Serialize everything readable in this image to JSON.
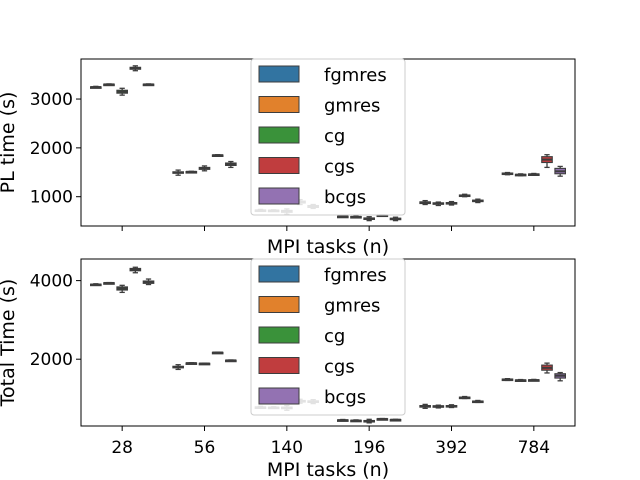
{
  "chart_data": [
    {
      "type": "box",
      "xlabel": "MPI tasks (n)",
      "ylabel": "PL time (s)",
      "categories": [
        "28",
        "56",
        "140",
        "196",
        "392",
        "784"
      ],
      "show_x_ticklabels": false,
      "y_ticks": [
        1000,
        2000,
        3000
      ],
      "ylim": [
        400,
        3820
      ],
      "legend": "top-center",
      "series": [
        {
          "name": "fgmres",
          "color": "#3274a1",
          "boxes": [
            {
              "min": 3230,
              "q1": 3240,
              "median": 3245,
              "q3": 3250,
              "max": 3260
            },
            {
              "min": 1440,
              "q1": 1480,
              "median": 1495,
              "q3": 1510,
              "max": 1545
            },
            {
              "min": 700,
              "q1": 712,
              "median": 720,
              "q3": 728,
              "max": 740
            },
            {
              "min": 580,
              "q1": 590,
              "median": 595,
              "q3": 600,
              "max": 610
            },
            {
              "min": 840,
              "q1": 860,
              "median": 880,
              "q3": 895,
              "max": 920
            },
            {
              "min": 1450,
              "q1": 1465,
              "median": 1475,
              "q3": 1485,
              "max": 1495
            }
          ]
        },
        {
          "name": "gmres",
          "color": "#e1812c",
          "boxes": [
            {
              "min": 3290,
              "q1": 3295,
              "median": 3300,
              "q3": 3305,
              "max": 3310
            },
            {
              "min": 1500,
              "q1": 1505,
              "median": 1510,
              "q3": 1515,
              "max": 1520
            },
            {
              "min": 705,
              "q1": 712,
              "median": 718,
              "q3": 724,
              "max": 732
            },
            {
              "min": 570,
              "q1": 580,
              "median": 587,
              "q3": 594,
              "max": 604
            },
            {
              "min": 820,
              "q1": 845,
              "median": 860,
              "q3": 875,
              "max": 890
            },
            {
              "min": 1430,
              "q1": 1440,
              "median": 1450,
              "q3": 1458,
              "max": 1468
            }
          ]
        },
        {
          "name": "cg",
          "color": "#3a923a",
          "boxes": [
            {
              "min": 3080,
              "q1": 3120,
              "median": 3150,
              "q3": 3180,
              "max": 3220
            },
            {
              "min": 1530,
              "q1": 1560,
              "median": 1580,
              "q3": 1600,
              "max": 1630
            },
            {
              "min": 640,
              "q1": 680,
              "median": 700,
              "q3": 720,
              "max": 750
            },
            {
              "min": 510,
              "q1": 535,
              "median": 550,
              "q3": 565,
              "max": 590
            },
            {
              "min": 830,
              "q1": 850,
              "median": 865,
              "q3": 880,
              "max": 900
            },
            {
              "min": 1440,
              "q1": 1450,
              "median": 1458,
              "q3": 1466,
              "max": 1476
            }
          ]
        },
        {
          "name": "cgs",
          "color": "#c03d3e",
          "boxes": [
            {
              "min": 3580,
              "q1": 3610,
              "median": 3630,
              "q3": 3650,
              "max": 3680
            },
            {
              "min": 1840,
              "q1": 1845,
              "median": 1850,
              "q3": 1855,
              "max": 1860
            },
            {
              "min": 840,
              "q1": 870,
              "median": 890,
              "q3": 910,
              "max": 940
            },
            {
              "min": 610,
              "q1": 615,
              "median": 620,
              "q3": 625,
              "max": 630
            },
            {
              "min": 1000,
              "q1": 1015,
              "median": 1025,
              "q3": 1035,
              "max": 1050
            },
            {
              "min": 1600,
              "q1": 1700,
              "median": 1760,
              "q3": 1820,
              "max": 1860
            }
          ]
        },
        {
          "name": "bcgs",
          "color": "#9372b2",
          "boxes": [
            {
              "min": 3290,
              "q1": 3295,
              "median": 3300,
              "q3": 3305,
              "max": 3310
            },
            {
              "min": 1600,
              "q1": 1640,
              "median": 1660,
              "q3": 1690,
              "max": 1720
            },
            {
              "min": 760,
              "q1": 780,
              "median": 800,
              "q3": 820,
              "max": 840
            },
            {
              "min": 510,
              "q1": 530,
              "median": 545,
              "q3": 560,
              "max": 580
            },
            {
              "min": 880,
              "q1": 900,
              "median": 915,
              "q3": 930,
              "max": 950
            },
            {
              "min": 1420,
              "q1": 1470,
              "median": 1520,
              "q3": 1580,
              "max": 1620
            }
          ]
        }
      ]
    },
    {
      "type": "box",
      "xlabel": "MPI tasks (n)",
      "ylabel": "Total Time (s)",
      "categories": [
        "28",
        "56",
        "140",
        "196",
        "392",
        "784"
      ],
      "show_x_ticklabels": true,
      "y_ticks": [
        2000,
        4000
      ],
      "ylim": [
        300,
        4550
      ],
      "legend": "top-center",
      "series": [
        {
          "name": "fgmres",
          "color": "#3274a1",
          "boxes": [
            {
              "min": 3880,
              "q1": 3890,
              "median": 3900,
              "q3": 3910,
              "max": 3920
            },
            {
              "min": 1740,
              "q1": 1780,
              "median": 1800,
              "q3": 1820,
              "max": 1860
            },
            {
              "min": 750,
              "q1": 765,
              "median": 775,
              "q3": 785,
              "max": 800
            },
            {
              "min": 430,
              "q1": 440,
              "median": 448,
              "q3": 456,
              "max": 466
            },
            {
              "min": 750,
              "q1": 780,
              "median": 800,
              "q3": 820,
              "max": 850
            },
            {
              "min": 1460,
              "q1": 1475,
              "median": 1485,
              "q3": 1495,
              "max": 1505
            }
          ]
        },
        {
          "name": "gmres",
          "color": "#e1812c",
          "boxes": [
            {
              "min": 3930,
              "q1": 3935,
              "median": 3940,
              "q3": 3945,
              "max": 3950
            },
            {
              "min": 1890,
              "q1": 1895,
              "median": 1900,
              "q3": 1905,
              "max": 1910
            },
            {
              "min": 755,
              "q1": 765,
              "median": 772,
              "q3": 780,
              "max": 790
            },
            {
              "min": 420,
              "q1": 430,
              "median": 438,
              "q3": 446,
              "max": 456
            },
            {
              "min": 760,
              "q1": 785,
              "median": 800,
              "q3": 815,
              "max": 830
            },
            {
              "min": 1445,
              "q1": 1455,
              "median": 1465,
              "q3": 1472,
              "max": 1482
            }
          ]
        },
        {
          "name": "cg",
          "color": "#3a923a",
          "boxes": [
            {
              "min": 3700,
              "q1": 3760,
              "median": 3800,
              "q3": 3840,
              "max": 3880
            },
            {
              "min": 1880,
              "q1": 1885,
              "median": 1890,
              "q3": 1895,
              "max": 1900
            },
            {
              "min": 700,
              "q1": 740,
              "median": 760,
              "q3": 780,
              "max": 820
            },
            {
              "min": 380,
              "q1": 410,
              "median": 425,
              "q3": 440,
              "max": 470
            },
            {
              "min": 770,
              "q1": 790,
              "median": 805,
              "q3": 820,
              "max": 840
            },
            {
              "min": 1450,
              "q1": 1460,
              "median": 1468,
              "q3": 1476,
              "max": 1486
            }
          ]
        },
        {
          "name": "cgs",
          "color": "#c03d3e",
          "boxes": [
            {
              "min": 4200,
              "q1": 4250,
              "median": 4280,
              "q3": 4310,
              "max": 4340
            },
            {
              "min": 2160,
              "q1": 2165,
              "median": 2170,
              "q3": 2175,
              "max": 2180
            },
            {
              "min": 880,
              "q1": 910,
              "median": 930,
              "q3": 950,
              "max": 980
            },
            {
              "min": 470,
              "q1": 475,
              "median": 480,
              "q3": 485,
              "max": 490
            },
            {
              "min": 1000,
              "q1": 1015,
              "median": 1025,
              "q3": 1035,
              "max": 1050
            },
            {
              "min": 1650,
              "q1": 1720,
              "median": 1780,
              "q3": 1850,
              "max": 1900
            }
          ]
        },
        {
          "name": "bcgs",
          "color": "#9372b2",
          "boxes": [
            {
              "min": 3900,
              "q1": 3930,
              "median": 3960,
              "q3": 3990,
              "max": 4040
            },
            {
              "min": 1960,
              "q1": 1965,
              "median": 1970,
              "q3": 1975,
              "max": 1980
            },
            {
              "min": 870,
              "q1": 900,
              "median": 920,
              "q3": 940,
              "max": 970
            },
            {
              "min": 450,
              "q1": 455,
              "median": 460,
              "q3": 465,
              "max": 470
            },
            {
              "min": 900,
              "q1": 915,
              "median": 925,
              "q3": 935,
              "max": 950
            },
            {
              "min": 1450,
              "q1": 1520,
              "median": 1580,
              "q3": 1630,
              "max": 1660
            }
          ]
        }
      ]
    }
  ]
}
